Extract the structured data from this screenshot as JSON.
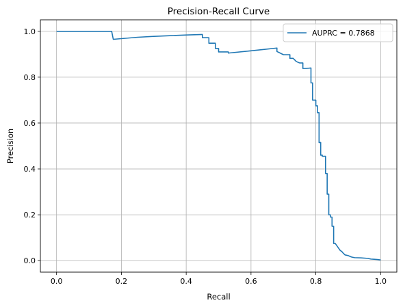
{
  "chart_data": {
    "type": "line",
    "title": "Precision-Recall Curve",
    "xlabel": "Recall",
    "ylabel": "Precision",
    "xlim": [
      -0.05,
      1.05
    ],
    "ylim": [
      -0.05,
      1.05
    ],
    "xticks": [
      "0.0",
      "0.2",
      "0.4",
      "0.6",
      "0.8",
      "1.0"
    ],
    "yticks": [
      "0.0",
      "0.2",
      "0.4",
      "0.6",
      "0.8",
      "1.0"
    ],
    "grid": true,
    "legend_position": "upper-right",
    "line_color": "#1f77b4",
    "series": [
      {
        "name": "AUPRC = 0.7868",
        "points": [
          [
            0.0,
            1.0
          ],
          [
            0.17,
            1.0
          ],
          [
            0.175,
            0.965
          ],
          [
            0.2,
            0.968
          ],
          [
            0.25,
            0.974
          ],
          [
            0.3,
            0.978
          ],
          [
            0.35,
            0.981
          ],
          [
            0.4,
            0.984
          ],
          [
            0.45,
            0.986
          ],
          [
            0.45,
            0.972
          ],
          [
            0.47,
            0.972
          ],
          [
            0.47,
            0.948
          ],
          [
            0.49,
            0.948
          ],
          [
            0.49,
            0.925
          ],
          [
            0.5,
            0.925
          ],
          [
            0.5,
            0.91
          ],
          [
            0.53,
            0.91
          ],
          [
            0.53,
            0.905
          ],
          [
            0.6,
            0.915
          ],
          [
            0.68,
            0.927
          ],
          [
            0.68,
            0.912
          ],
          [
            0.69,
            0.905
          ],
          [
            0.7,
            0.898
          ],
          [
            0.72,
            0.898
          ],
          [
            0.72,
            0.882
          ],
          [
            0.73,
            0.882
          ],
          [
            0.74,
            0.868
          ],
          [
            0.75,
            0.862
          ],
          [
            0.76,
            0.862
          ],
          [
            0.76,
            0.838
          ],
          [
            0.77,
            0.838
          ],
          [
            0.785,
            0.84
          ],
          [
            0.785,
            0.775
          ],
          [
            0.79,
            0.775
          ],
          [
            0.79,
            0.7
          ],
          [
            0.8,
            0.7
          ],
          [
            0.8,
            0.675
          ],
          [
            0.805,
            0.675
          ],
          [
            0.805,
            0.645
          ],
          [
            0.81,
            0.645
          ],
          [
            0.81,
            0.515
          ],
          [
            0.815,
            0.515
          ],
          [
            0.815,
            0.46
          ],
          [
            0.82,
            0.46
          ],
          [
            0.82,
            0.455
          ],
          [
            0.83,
            0.455
          ],
          [
            0.83,
            0.38
          ],
          [
            0.835,
            0.38
          ],
          [
            0.835,
            0.29
          ],
          [
            0.84,
            0.29
          ],
          [
            0.84,
            0.2
          ],
          [
            0.845,
            0.2
          ],
          [
            0.845,
            0.19
          ],
          [
            0.85,
            0.19
          ],
          [
            0.85,
            0.15
          ],
          [
            0.855,
            0.15
          ],
          [
            0.855,
            0.075
          ],
          [
            0.86,
            0.075
          ],
          [
            0.865,
            0.065
          ],
          [
            0.87,
            0.055
          ],
          [
            0.875,
            0.045
          ],
          [
            0.88,
            0.04
          ],
          [
            0.885,
            0.032
          ],
          [
            0.89,
            0.025
          ],
          [
            0.9,
            0.022
          ],
          [
            0.91,
            0.016
          ],
          [
            0.92,
            0.013
          ],
          [
            0.94,
            0.012
          ],
          [
            0.96,
            0.01
          ],
          [
            0.97,
            0.007
          ],
          [
            0.98,
            0.006
          ],
          [
            0.99,
            0.005
          ],
          [
            1.0,
            0.003
          ]
        ]
      }
    ]
  }
}
